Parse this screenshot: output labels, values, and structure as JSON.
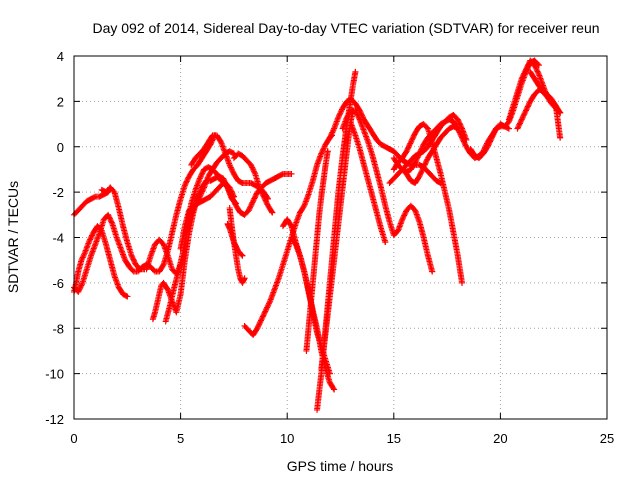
{
  "chart_data": {
    "type": "scatter",
    "title": "Day 092 of 2014, Sidereal Day-to-day VTEC variation (SDTVAR) for receiver reun",
    "xlabel": "GPS time / hours",
    "ylabel": "SDTVAR / TECUs",
    "xlim": [
      0,
      25
    ],
    "ylim": [
      -12,
      4
    ],
    "xticks": [
      "0",
      "5",
      "10",
      "15",
      "20",
      "25"
    ],
    "yticks": [
      "-12",
      "-10",
      "-8",
      "-6",
      "-4",
      "-2",
      "0",
      "2",
      "4"
    ],
    "grid": true,
    "marker": "+",
    "color": "#ff0000",
    "series": [
      {
        "x": [
          0.0,
          0.2,
          0.4,
          0.6,
          0.8,
          1.0,
          1.2,
          1.4,
          1.6,
          1.7
        ],
        "y": [
          -3.0,
          -2.8,
          -2.6,
          -2.4,
          -2.3,
          -2.2,
          -2.2,
          -2.1,
          -2.0,
          -1.8
        ]
      },
      {
        "x": [
          0.0,
          0.1,
          0.2,
          0.35,
          0.5,
          0.7,
          0.9,
          1.1,
          1.3,
          1.5,
          1.7,
          1.9,
          2.1,
          2.3,
          2.5
        ],
        "y": [
          -6.4,
          -6.0,
          -5.5,
          -5.0,
          -4.7,
          -4.2,
          -3.8,
          -3.5,
          -3.7,
          -4.3,
          -5.0,
          -5.7,
          -6.2,
          -6.5,
          -6.6
        ]
      },
      {
        "x": [
          0.0,
          0.2,
          0.4,
          0.6,
          0.8,
          1.0,
          1.2,
          1.4,
          1.6,
          1.8,
          2.0,
          2.2,
          2.4,
          2.6,
          2.8,
          3.0,
          3.2,
          3.4,
          3.6,
          3.8,
          4.0,
          4.2,
          4.4,
          4.6,
          4.8,
          5.0,
          5.2,
          5.4,
          5.6,
          5.8,
          6.0,
          6.2,
          6.4,
          6.6
        ],
        "y": [
          -6.2,
          -6.4,
          -6.0,
          -5.4,
          -4.8,
          -4.3,
          -3.8,
          -3.2,
          -3.0,
          -3.4,
          -4.0,
          -4.5,
          -5.0,
          -5.3,
          -5.5,
          -5.5,
          -5.3,
          -5.2,
          -5.3,
          -5.5,
          -5.5,
          -5.2,
          -4.6,
          -3.8,
          -3.0,
          -2.3,
          -1.7,
          -1.3,
          -1.0,
          -0.8,
          -0.5,
          -0.2,
          0.1,
          0.5
        ]
      },
      {
        "x": [
          1.3,
          1.5,
          1.7,
          1.9,
          2.1,
          2.3,
          2.5,
          2.7,
          2.9,
          3.1,
          3.3
        ],
        "y": [
          -1.9,
          -2.0,
          -1.8,
          -2.0,
          -2.7,
          -3.5,
          -4.2,
          -4.8,
          -5.2,
          -5.4,
          -5.4
        ]
      },
      {
        "x": [
          3.4,
          3.6,
          3.8,
          4.0,
          4.2,
          4.4,
          4.6,
          4.8,
          5.0
        ],
        "y": [
          -5.4,
          -4.8,
          -4.3,
          -4.1,
          -4.3,
          -4.8,
          -5.4,
          -5.6,
          -5.2
        ]
      },
      {
        "x": [
          3.7,
          3.8,
          3.9,
          4.0,
          4.1,
          4.2,
          4.4,
          4.6,
          4.8,
          5.0,
          5.2,
          5.4,
          5.6,
          5.8,
          6.0,
          6.2,
          6.4,
          6.6,
          6.8,
          7.0,
          7.2,
          7.4,
          7.6
        ],
        "y": [
          -7.6,
          -7.3,
          -6.9,
          -6.5,
          -6.1,
          -6.0,
          -6.3,
          -6.8,
          -7.3,
          -6.5,
          -5.0,
          -3.8,
          -2.9,
          -2.2,
          -1.8,
          -1.5,
          -1.5,
          -1.4,
          -1.3,
          -1.4,
          -1.8,
          -2.3,
          -2.5
        ]
      },
      {
        "x": [
          4.3,
          4.5,
          4.7,
          4.9,
          5.1,
          5.3,
          5.5,
          5.7,
          5.9,
          6.1,
          6.3,
          6.5,
          6.7,
          6.9,
          7.1,
          7.3,
          7.5
        ],
        "y": [
          -7.7,
          -7.0,
          -6.2,
          -5.5,
          -4.7,
          -3.8,
          -3.0,
          -2.5,
          -2.2,
          -1.8,
          -1.3,
          -1.0,
          -0.7,
          -0.5,
          -0.3,
          -0.2,
          -0.3
        ]
      },
      {
        "x": [
          5.0,
          5.2,
          5.4,
          5.6,
          5.8,
          6.0,
          6.2,
          6.4,
          6.6,
          6.8,
          7.0,
          7.2,
          7.4,
          7.6,
          7.8,
          8.0,
          8.2,
          8.4,
          8.6,
          8.8,
          9.0,
          9.2,
          9.4,
          9.6,
          9.8,
          10.0,
          10.2
        ],
        "y": [
          -4.5,
          -3.5,
          -2.8,
          -2.6,
          -2.5,
          -2.4,
          -2.3,
          -2.2,
          -2.0,
          -1.8,
          -1.6,
          -1.8,
          -2.2,
          -2.6,
          -2.9,
          -3.0,
          -2.8,
          -2.4,
          -2.0,
          -1.8,
          -1.6,
          -1.5,
          -1.4,
          -1.3,
          -1.2,
          -1.2,
          -1.2
        ]
      },
      {
        "x": [
          5.3,
          5.5,
          5.7,
          5.9,
          6.1,
          6.3,
          6.5,
          6.7,
          6.9,
          7.1,
          7.3,
          7.5
        ],
        "y": [
          -3.5,
          -2.5,
          -1.9,
          -1.4,
          -1.0,
          -0.9,
          -1.0,
          -1.2,
          -1.5,
          -1.6,
          -1.8,
          -2.2
        ]
      },
      {
        "x": [
          5.5,
          5.7,
          5.9,
          6.1,
          6.3,
          6.5,
          6.7,
          6.9,
          7.1,
          7.3,
          7.5,
          7.7,
          7.9,
          8.1,
          8.3,
          8.5,
          8.7,
          8.9,
          9.1
        ],
        "y": [
          -0.8,
          -0.5,
          -0.3,
          -0.1,
          0.2,
          0.5,
          0.5,
          0.2,
          -0.3,
          -0.8,
          -1.2,
          -1.5,
          -1.6,
          -1.6,
          -1.6,
          -1.7,
          -1.8,
          -2.0,
          -2.3
        ]
      },
      {
        "x": [
          7.3,
          7.4,
          7.5,
          7.6,
          7.7,
          7.8,
          7.9,
          8.0
        ],
        "y": [
          -2.7,
          -3.5,
          -4.2,
          -4.8,
          -5.4,
          -5.8,
          -6.0,
          -5.8
        ]
      },
      {
        "x": [
          7.2,
          7.3,
          7.4,
          7.5,
          7.6,
          7.7,
          7.8,
          7.9
        ],
        "y": [
          -3.4,
          -3.6,
          -3.9,
          -4.2,
          -4.4,
          -4.6,
          -4.7,
          -4.8
        ]
      },
      {
        "x": [
          7.5,
          7.7,
          7.9,
          8.1,
          8.3,
          8.5,
          8.7,
          8.9,
          9.1,
          9.3
        ],
        "y": [
          -0.5,
          -0.3,
          -0.4,
          -0.6,
          -0.8,
          -1.2,
          -1.8,
          -2.2,
          -2.6,
          -2.9
        ]
      },
      {
        "x": [
          8.0,
          8.2,
          8.4,
          8.6,
          8.8,
          9.0,
          9.2,
          9.4,
          9.6,
          9.8,
          10.0,
          10.2,
          10.4,
          10.6,
          10.8,
          11.0,
          11.2,
          11.4,
          11.6,
          11.8,
          12.0,
          12.1
        ],
        "y": [
          -7.9,
          -8.1,
          -8.3,
          -8.0,
          -7.6,
          -7.2,
          -6.8,
          -6.3,
          -5.8,
          -5.2,
          -4.6,
          -4.0,
          -3.4,
          -2.9,
          -2.6,
          -2.1,
          -1.5,
          -0.8,
          -0.3,
          0.1,
          0.4,
          0.5
        ]
      },
      {
        "x": [
          9.8,
          10.0,
          10.2,
          10.4,
          10.6,
          10.8,
          11.0,
          11.2,
          11.4,
          11.6,
          11.8,
          12.0,
          12.2
        ],
        "y": [
          -3.5,
          -3.2,
          -3.5,
          -4.2,
          -4.8,
          -5.5,
          -6.3,
          -7.2,
          -8.0,
          -9.0,
          -9.8,
          -10.4,
          -10.7
        ]
      },
      {
        "x": [
          10.2,
          10.4,
          10.6,
          10.8,
          11.0,
          11.2,
          11.4,
          11.6,
          11.8,
          12.0
        ],
        "y": [
          -4.0,
          -4.3,
          -4.8,
          -5.5,
          -6.4,
          -7.3,
          -8.2,
          -8.8,
          -9.4,
          -10.0
        ]
      },
      {
        "x": [
          10.9,
          11.0,
          11.1,
          11.2,
          11.3,
          11.4,
          11.5,
          11.6,
          11.7,
          11.8,
          11.9
        ],
        "y": [
          -9.0,
          -8.0,
          -7.0,
          -6.0,
          -5.0,
          -4.0,
          -3.0,
          -2.2,
          -1.5,
          -0.8,
          -0.2
        ]
      },
      {
        "x": [
          11.4,
          11.5,
          11.6,
          11.7,
          11.8,
          11.9,
          12.0,
          12.1,
          12.2,
          12.3,
          12.4,
          12.5,
          12.6,
          12.7,
          12.8,
          12.9,
          13.0,
          13.1,
          13.2
        ],
        "y": [
          -11.6,
          -10.8,
          -10.0,
          -9.0,
          -8.0,
          -7.0,
          -6.0,
          -5.0,
          -4.0,
          -3.0,
          -2.0,
          -1.2,
          -0.4,
          0.3,
          1.0,
          1.6,
          2.2,
          2.8,
          3.3
        ]
      },
      {
        "x": [
          11.6,
          11.7,
          11.8,
          11.9,
          12.0,
          12.1,
          12.2,
          12.3,
          12.4,
          12.5,
          12.6,
          12.7,
          12.8,
          12.9,
          13.0,
          13.1
        ],
        "y": [
          -9.8,
          -9.0,
          -8.2,
          -7.4,
          -6.6,
          -5.8,
          -5.0,
          -4.2,
          -3.4,
          -2.6,
          -1.8,
          -1.0,
          -0.2,
          0.6,
          1.2,
          1.6
        ]
      },
      {
        "x": [
          12.0,
          12.2,
          12.4,
          12.6,
          12.8,
          13.0,
          13.2,
          13.4,
          13.6,
          13.8,
          14.0,
          14.2,
          14.4,
          14.6,
          14.8,
          15.0,
          15.2,
          15.4,
          15.6,
          15.8,
          16.0,
          16.2,
          16.4,
          16.6,
          16.8,
          17.0,
          17.2
        ],
        "y": [
          0.4,
          0.8,
          1.3,
          1.7,
          2.0,
          2.1,
          1.9,
          1.6,
          1.2,
          0.9,
          0.6,
          0.3,
          0.1,
          0.0,
          -0.1,
          -0.2,
          -0.4,
          -0.6,
          -0.7,
          -0.8,
          -0.8,
          -0.8,
          -0.9,
          -1.1,
          -1.3,
          -1.5,
          -1.6
        ]
      },
      {
        "x": [
          12.6,
          12.8,
          13.0,
          13.2,
          13.4,
          13.6,
          13.8,
          14.0,
          14.2,
          14.4,
          14.6,
          14.8,
          15.0,
          15.2,
          15.4,
          15.6,
          15.8,
          16.0,
          16.2,
          16.4,
          16.6,
          16.8
        ],
        "y": [
          0.8,
          1.3,
          1.6,
          1.6,
          1.2,
          0.7,
          0.2,
          -0.4,
          -1.1,
          -1.8,
          -2.6,
          -3.3,
          -3.9,
          -3.7,
          -3.2,
          -2.8,
          -2.6,
          -2.8,
          -3.3,
          -4.0,
          -4.8,
          -5.5
        ]
      },
      {
        "x": [
          13.0,
          13.2,
          13.4,
          13.6,
          13.8,
          14.0,
          14.2,
          14.4,
          14.6
        ],
        "y": [
          1.0,
          0.5,
          -0.1,
          -0.8,
          -1.5,
          -2.2,
          -2.9,
          -3.6,
          -4.2
        ]
      },
      {
        "x": [
          15.0,
          15.2,
          15.4,
          15.6,
          15.8,
          16.0,
          16.2,
          16.4,
          16.6,
          16.8,
          17.0,
          17.2,
          17.4,
          17.6,
          17.8,
          18.0,
          18.2
        ],
        "y": [
          -1.0,
          -0.7,
          -0.5,
          -0.2,
          0.2,
          0.6,
          0.9,
          1.0,
          0.8,
          0.2,
          -0.5,
          -1.2,
          -2.0,
          -2.8,
          -3.8,
          -4.8,
          -6.0
        ]
      },
      {
        "x": [
          15.0,
          15.2,
          15.4,
          15.6,
          15.8,
          16.0,
          16.2,
          16.4,
          16.6,
          16.8,
          17.0,
          17.2,
          17.4,
          17.6,
          17.8,
          18.0,
          18.2,
          18.4,
          18.6,
          18.8,
          19.0,
          19.2,
          19.4,
          19.6,
          19.8,
          20.0,
          20.2,
          20.4
        ],
        "y": [
          -0.5,
          -0.8,
          -1.0,
          -1.1,
          -1.0,
          -0.7,
          -0.3,
          0.1,
          0.4,
          0.6,
          0.8,
          1.0,
          1.1,
          1.2,
          1.1,
          0.8,
          0.4,
          0.0,
          -0.3,
          -0.5,
          -0.4,
          -0.2,
          0.2,
          0.5,
          0.8,
          0.9,
          0.9,
          0.8
        ]
      },
      {
        "x": [
          14.8,
          15.0,
          15.2,
          15.4,
          15.6,
          15.8,
          16.0,
          16.2,
          16.4,
          16.6,
          16.8,
          17.0,
          17.2,
          17.4,
          17.6,
          17.8,
          18.0,
          18.2,
          18.4
        ],
        "y": [
          -1.6,
          -1.4,
          -1.2,
          -1.0,
          -0.8,
          -0.6,
          -0.4,
          -0.3,
          -0.2,
          0.0,
          0.3,
          0.6,
          0.9,
          1.1,
          1.3,
          1.4,
          1.2,
          0.8,
          0.3
        ]
      },
      {
        "x": [
          15.4,
          15.6,
          15.8,
          16.0,
          16.2,
          16.4,
          16.6,
          16.8,
          17.0,
          17.2,
          17.4,
          17.6,
          17.8,
          18.0
        ],
        "y": [
          -1.0,
          -1.2,
          -1.5,
          -1.6,
          -1.3,
          -0.9,
          -0.5,
          -0.2,
          0.1,
          0.4,
          0.6,
          0.8,
          0.9,
          0.8
        ]
      },
      {
        "x": [
          18.6,
          18.8,
          19.0,
          19.2,
          19.4,
          19.6,
          19.8,
          20.0,
          20.2,
          20.4,
          20.6,
          20.8,
          21.0,
          21.2,
          21.4,
          21.6,
          21.8
        ],
        "y": [
          -0.1,
          -0.4,
          -0.5,
          -0.3,
          0.0,
          0.4,
          0.8,
          1.0,
          0.9,
          1.1,
          1.6,
          2.2,
          2.8,
          3.3,
          3.7,
          3.8,
          3.6
        ]
      },
      {
        "x": [
          20.4,
          20.6,
          20.8,
          21.0,
          21.2,
          21.4,
          21.6,
          21.8,
          22.0,
          22.2,
          22.4,
          22.6,
          22.8
        ],
        "y": [
          1.2,
          1.8,
          2.4,
          3.0,
          3.4,
          3.8,
          3.6,
          3.2,
          2.7,
          2.2,
          1.9,
          1.7,
          1.5
        ]
      },
      {
        "x": [
          20.8,
          21.0,
          21.2,
          21.4,
          21.6,
          21.8,
          22.0,
          22.2,
          22.4,
          22.6,
          22.8
        ],
        "y": [
          0.8,
          1.2,
          1.6,
          2.0,
          2.3,
          2.5,
          2.5,
          2.3,
          2.1,
          1.8,
          1.5
        ]
      },
      {
        "x": [
          21.4,
          21.6,
          21.8,
          22.0,
          22.2,
          22.4,
          22.6,
          22.8
        ],
        "y": [
          3.3,
          3.0,
          2.7,
          2.4,
          2.2,
          2.0,
          1.8,
          0.4
        ]
      }
    ]
  }
}
